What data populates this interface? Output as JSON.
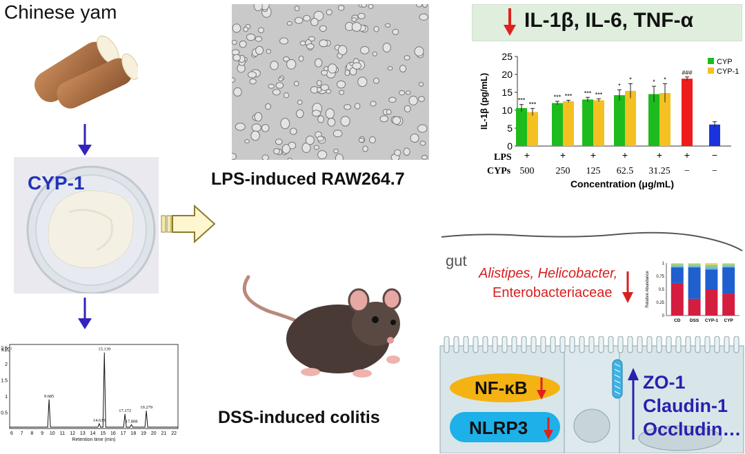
{
  "left": {
    "title": "Chinese yam",
    "sample_label": "CYP-1",
    "chromatogram": {
      "y_label": "x10⁷",
      "x_label": "Retention time (min)",
      "y_ticks": [
        "0.5",
        "1",
        "1.5",
        "2",
        "2.5"
      ],
      "x_ticks": [
        "6",
        "7",
        "8",
        "9",
        "10",
        "11",
        "12",
        "13",
        "14",
        "15",
        "16",
        "17",
        "18",
        "19",
        "20",
        "21",
        "22"
      ],
      "peaks": [
        {
          "rt": 9.685,
          "label": "9.685",
          "height": 0.9
        },
        {
          "rt": 14.633,
          "label": "14.633",
          "height": 0.15
        },
        {
          "rt": 15.139,
          "label": "15.139",
          "height": 2.35
        },
        {
          "rt": 17.172,
          "label": "17.172",
          "height": 0.45
        },
        {
          "rt": 17.808,
          "label": "17.808",
          "height": 0.12
        },
        {
          "rt": 19.279,
          "label": "19.279",
          "height": 0.55
        }
      ]
    }
  },
  "middle": {
    "cells_caption": "LPS-induced RAW264.7",
    "mouse_caption": "DSS-induced colitis"
  },
  "top_right": {
    "banner_text": "IL-1β, IL-6, TNF-α",
    "colors": {
      "down_arrow": "#e02020",
      "banner_bg": "#dfeedd"
    }
  },
  "chart_data": {
    "type": "bar",
    "ylabel": "IL-1β (pg/mL)",
    "xlabel": "Concentration (μg/mL)",
    "ylim": [
      0,
      25
    ],
    "y_ticks": [
      "0",
      "5",
      "10",
      "15",
      "20",
      "25"
    ],
    "lps_row_label": "LPS",
    "lps_marks": [
      "+",
      "+",
      "+",
      "+",
      "+",
      "+",
      "−"
    ],
    "cyps_row_label": "CYPs",
    "cyps_marks": [
      "500",
      "250",
      "125",
      "62.5",
      "31.25",
      "−",
      "−"
    ],
    "series": [
      {
        "name": "CYP",
        "color": "#1dbb1d",
        "values": [
          10.6,
          12.0,
          13.0,
          14.2,
          14.5
        ],
        "errors": [
          1.0,
          0.5,
          0.6,
          1.5,
          2.2
        ],
        "sig": [
          "***",
          "***",
          "***",
          "*",
          "*"
        ]
      },
      {
        "name": "CYP-1",
        "color": "#f5c022",
        "values": [
          9.5,
          12.5,
          12.8,
          15.4,
          14.8
        ],
        "errors": [
          1.0,
          0.3,
          0.4,
          2.0,
          2.6
        ],
        "sig": [
          "***",
          "***",
          "***",
          "*",
          "*"
        ]
      }
    ],
    "lps_value": 18.8,
    "lps_error": 0.5,
    "lps_sig": "###",
    "lps_color": "#ee1c1c",
    "control_value": 6.0,
    "control_error": 0.8,
    "control_color": "#1a33dd",
    "legend_position": "top-right"
  },
  "gut": {
    "label": "gut",
    "bacteria_italic": "Alistipes, Helicobacter,",
    "bacteria_plain": "Enterobacteriaceae",
    "abundance_chart": {
      "ylabel": "Relative Abundance",
      "y_ticks": [
        "0",
        "0.25",
        "0.5",
        "0.75",
        "1"
      ],
      "groups": [
        "CD",
        "DSS",
        "CYP-1",
        "CYP"
      ],
      "layers": [
        {
          "color": "#d41d3f",
          "values": [
            0.62,
            0.32,
            0.5,
            0.42
          ]
        },
        {
          "color": "#1f5fce",
          "values": [
            0.3,
            0.6,
            0.38,
            0.5
          ]
        },
        {
          "color": "#6fb7e0",
          "values": [
            0.03,
            0.03,
            0.05,
            0.03
          ]
        },
        {
          "color": "#8fcf6f",
          "values": [
            0.03,
            0.03,
            0.04,
            0.03
          ]
        },
        {
          "color": "#efd26a",
          "values": [
            0.02,
            0.02,
            0.03,
            0.02
          ]
        }
      ]
    },
    "nfkb": "NF-κB",
    "nlrp3": "NLRP3",
    "tight_junctions": [
      "ZO-1",
      "Claudin-1",
      "Occludin…"
    ]
  }
}
